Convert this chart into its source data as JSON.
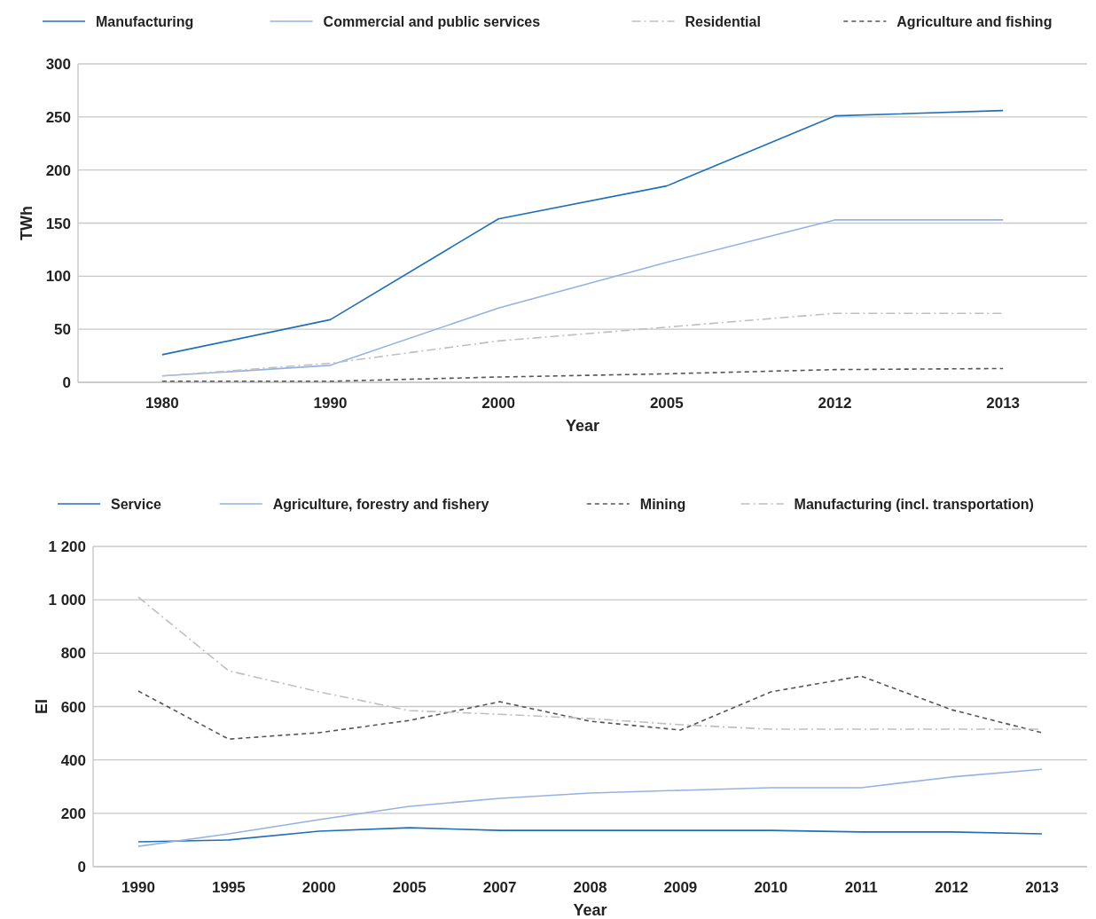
{
  "chart_data": [
    {
      "type": "line",
      "xlabel": "Year",
      "ylabel": "TWh",
      "categories": [
        "1980",
        "1990",
        "2000",
        "2005",
        "2012",
        "2013"
      ],
      "ylim": [
        0,
        300
      ],
      "yticks": [
        0,
        50,
        100,
        150,
        200,
        250,
        300
      ],
      "grid": "y",
      "legend": "top",
      "series": [
        {
          "name": "Manufacturing",
          "color": "#1f6fb8",
          "line_style": "solid",
          "values": [
            26,
            59,
            154,
            185,
            251,
            256
          ]
        },
        {
          "name": "Commercial and public services",
          "color": "#95b3e0",
          "line_style": "solid",
          "values": [
            6,
            16,
            70,
            113,
            153,
            153
          ]
        },
        {
          "name": "Residential",
          "color": "#bfbfbf",
          "line_style": "dashdot",
          "values": [
            6,
            18,
            39,
            52,
            65,
            65
          ]
        },
        {
          "name": "Agriculture and fishing",
          "color": "#555555",
          "line_style": "dashed",
          "values": [
            1,
            1,
            5,
            8,
            12,
            13
          ]
        }
      ]
    },
    {
      "type": "line",
      "xlabel": "Year",
      "ylabel": "EI",
      "categories": [
        "1990",
        "1995",
        "2000",
        "2005",
        "2007",
        "2008",
        "2009",
        "2010",
        "2011",
        "2012",
        "2013"
      ],
      "ylim": [
        0,
        1200
      ],
      "yticks": [
        0,
        200,
        400,
        600,
        800,
        {
          "value": 1000,
          "label": "1 000"
        },
        {
          "value": 1200,
          "label": "1 200"
        }
      ],
      "grid": "y",
      "legend": "top",
      "series": [
        {
          "name": "Service",
          "color": "#1f6fb8",
          "line_style": "solid",
          "values": [
            93,
            100,
            133,
            146,
            136,
            136,
            136,
            136,
            130,
            130,
            123
          ]
        },
        {
          "name": "Agriculture, forestry and fishery",
          "color": "#95b3e0",
          "line_style": "solid",
          "values": [
            76,
            123,
            176,
            226,
            256,
            276,
            286,
            296,
            296,
            336,
            365
          ]
        },
        {
          "name": "Mining",
          "color": "#555555",
          "line_style": "dashed",
          "values": [
            658,
            478,
            502,
            548,
            618,
            545,
            512,
            655,
            714,
            588,
            502
          ]
        },
        {
          "name": "Manufacturing (incl. transportation)",
          "color": "#bfbfbf",
          "line_style": "dashdot",
          "values": [
            1010,
            734,
            655,
            585,
            571,
            555,
            532,
            515,
            515,
            515,
            515
          ]
        }
      ]
    }
  ]
}
